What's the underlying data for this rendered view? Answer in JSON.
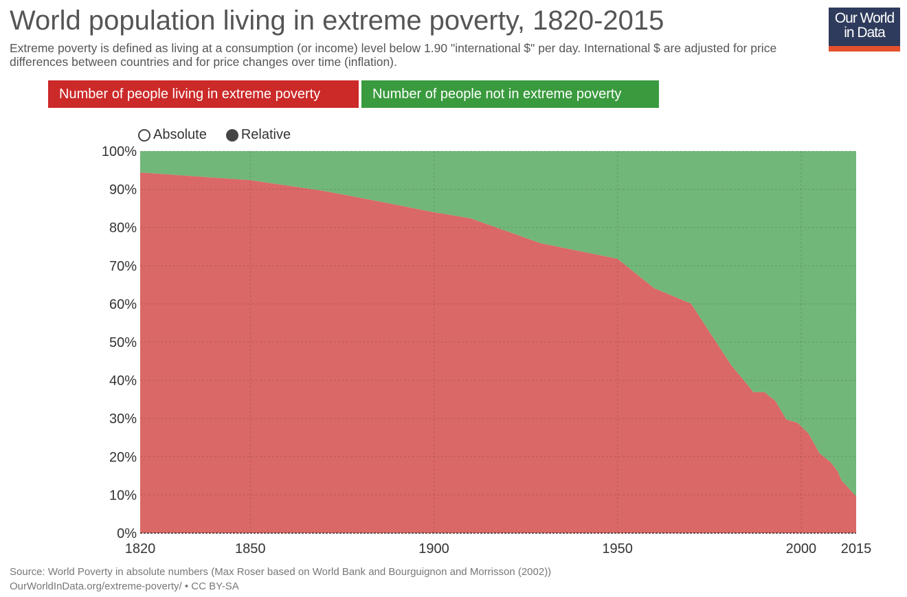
{
  "header": {
    "title": "World population living in extreme poverty, 1820-2015",
    "subtitle": "Extreme poverty is defined as living at a consumption (or income) level below 1.90 \"international $\" per day. International $ are adjusted for price differences between countries and for price changes over time (inflation).",
    "logo_line1": "Our World",
    "logo_line2": "in Data"
  },
  "toggle": {
    "absolute": "Absolute",
    "relative": "Relative",
    "selected": "Relative"
  },
  "footer": {
    "source": "Source: World Poverty in absolute numbers (Max Roser based on World Bank and Bourguignon and Morrisson (2002))",
    "license": "OurWorldInData.org/extreme-poverty/ • CC BY-SA"
  },
  "chart_data": {
    "type": "area",
    "stacked": true,
    "title": "World population living in extreme poverty, 1820-2015",
    "xlim": [
      1820,
      2015
    ],
    "ylim": [
      0,
      100
    ],
    "x_ticks": [
      1820,
      1850,
      1900,
      1950,
      2000,
      2015
    ],
    "y_ticks": [
      "0%",
      "10%",
      "20%",
      "30%",
      "40%",
      "50%",
      "60%",
      "70%",
      "80%",
      "90%",
      "100%"
    ],
    "grid": true,
    "legend_placement": "top",
    "x": [
      1820,
      1850,
      1870,
      1890,
      1900,
      1910,
      1929,
      1950,
      1960,
      1970,
      1981,
      1984,
      1987,
      1990,
      1993,
      1996,
      1999,
      2002,
      2005,
      2008,
      2010,
      2011,
      2012,
      2015
    ],
    "series": [
      {
        "name": "Number of people living in extreme poverty",
        "color": "#cc2929",
        "fill": "#da6866",
        "values": [
          94.4,
          92.4,
          89.6,
          85.9,
          84.0,
          82.4,
          75.9,
          71.8,
          64.1,
          60.1,
          43.9,
          40.5,
          36.9,
          36.9,
          34.6,
          29.7,
          28.9,
          26.1,
          20.9,
          18.6,
          16.1,
          13.8,
          12.8,
          9.6
        ]
      },
      {
        "name": "Number of people not in extreme poverty",
        "color": "#3a9a3e",
        "fill": "#71b77a",
        "values": [
          5.6,
          7.6,
          10.4,
          14.1,
          16.0,
          17.6,
          24.1,
          28.2,
          35.9,
          39.9,
          56.1,
          59.5,
          63.1,
          63.1,
          65.4,
          70.3,
          71.1,
          73.9,
          79.1,
          81.4,
          83.9,
          86.2,
          87.2,
          90.4
        ]
      }
    ]
  }
}
